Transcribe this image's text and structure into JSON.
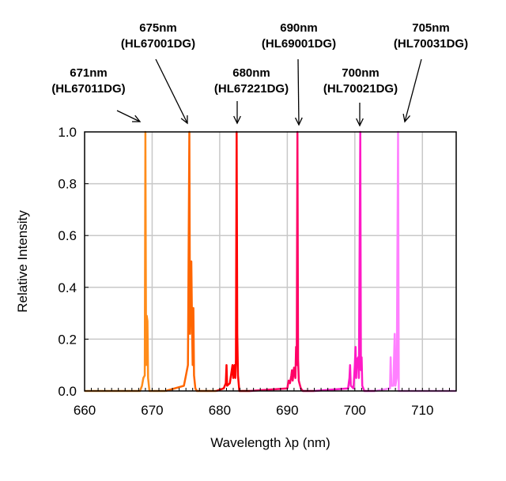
{
  "chart_data": {
    "type": "line",
    "title": "",
    "xlabel": "Wavelength λp (nm)",
    "ylabel": "Relative Intensity",
    "xlim": [
      660,
      715
    ],
    "ylim": [
      0,
      1.0
    ],
    "xticks": [
      660,
      670,
      680,
      690,
      700,
      710
    ],
    "xtick_labels": [
      "660",
      "670",
      "680",
      "690",
      "700",
      "710"
    ],
    "yticks": [
      0,
      0.2,
      0.4,
      0.6,
      0.8,
      1.0
    ],
    "ytick_labels": [
      "0.0",
      "0.2",
      "0.4",
      "0.6",
      "0.8",
      "1.0"
    ],
    "grid": true,
    "series": [
      {
        "name": "HL67011DG",
        "color": "#ff8c1a",
        "x": [
          660,
          668.2,
          668.5,
          668.7,
          668.9,
          669.0,
          669.1,
          669.2,
          669.3,
          669.4,
          669.6,
          672
        ],
        "y": [
          0,
          0,
          0.02,
          0.05,
          0.06,
          1.0,
          0.1,
          0.29,
          0.27,
          0.05,
          0,
          0
        ]
      },
      {
        "name": "HL67001DG",
        "color": "#ff6600",
        "x": [
          672,
          674.7,
          675.0,
          675.3,
          675.5,
          675.6,
          675.7,
          675.8,
          675.9,
          676.0,
          676.1,
          676.2,
          676.4,
          676.6,
          679.5
        ],
        "y": [
          0,
          0.02,
          0.06,
          0.1,
          1.0,
          0.22,
          0.5,
          0.5,
          0.25,
          0.1,
          0.32,
          0.06,
          0.01,
          0,
          0
        ]
      },
      {
        "name": "HL67221DG",
        "color": "#ff0000",
        "x": [
          679.5,
          680.6,
          680.9,
          681.0,
          681.1,
          681.5,
          681.9,
          682.0,
          682.2,
          682.3,
          682.4,
          682.5,
          682.6,
          682.7,
          682.9,
          684.5
        ],
        "y": [
          0,
          0.01,
          0.03,
          0.1,
          0.02,
          0.03,
          0.1,
          0.05,
          0.1,
          0.05,
          0.12,
          1.0,
          0.22,
          0.06,
          0,
          0
        ]
      },
      {
        "name": "HL69001DG",
        "color": "#ff0066",
        "x": [
          684.5,
          690.0,
          690.2,
          690.4,
          690.6,
          690.7,
          690.8,
          691.0,
          691.2,
          691.3,
          691.4,
          691.5,
          691.6,
          691.7,
          691.8,
          692.0,
          692.3,
          694
        ],
        "y": [
          0,
          0.01,
          0.04,
          0.03,
          0.06,
          0.08,
          0.04,
          0.09,
          0.05,
          0.17,
          0.1,
          1.0,
          0.12,
          0.04,
          0.03,
          0.01,
          0,
          0
        ]
      },
      {
        "name": "HL70021DG",
        "color": "#ff1ac6",
        "x": [
          694,
          699.0,
          699.1,
          699.2,
          699.3,
          699.4,
          699.8,
          700.0,
          700.1,
          700.2,
          700.3,
          700.5,
          700.6,
          700.8,
          700.9,
          701.0,
          701.1,
          701.4,
          703
        ],
        "y": [
          0,
          0.01,
          0.03,
          0.05,
          0.1,
          0.02,
          0.01,
          0.1,
          0.17,
          0.05,
          0.12,
          0.13,
          0.05,
          1.0,
          0.08,
          0.13,
          0.02,
          0,
          0
        ]
      },
      {
        "name": "HL70031DG",
        "color": "#ff80ff",
        "x": [
          703,
          705.2,
          705.3,
          705.4,
          705.7,
          705.9,
          706.0,
          706.2,
          706.4,
          706.5,
          715
        ],
        "y": [
          0,
          0.01,
          0.13,
          0.02,
          0.02,
          0.22,
          0.02,
          0.05,
          1.0,
          0,
          0
        ]
      }
    ],
    "annotations": [
      {
        "line1": "671nm",
        "line2": "(HL67011DG)"
      },
      {
        "line1": "675nm",
        "line2": "(HL67001DG)"
      },
      {
        "line1": "680nm",
        "line2": "(HL67221DG)"
      },
      {
        "line1": "690nm",
        "line2": "(HL69001DG)"
      },
      {
        "line1": "700nm",
        "line2": "(HL70021DG)"
      },
      {
        "line1": "705nm",
        "line2": "(HL70031DG)"
      }
    ]
  }
}
